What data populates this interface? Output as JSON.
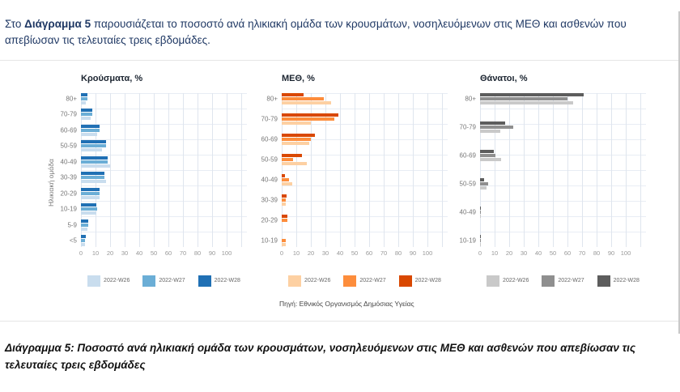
{
  "intro": {
    "prefix": "Στο ",
    "bold_text": "Διάγραμμα 5",
    "rest": " παρουσιάζεται το ποσοστό ανά ηλικιακή ομάδα των κρουσμάτων, νοσηλευόμενων στις ΜΕΘ και ασθενών που απεβίωσαν τις τελευταίες τρεις εβδομάδες."
  },
  "ylabel": "Ηλικιακή ομάδα",
  "source": "Πηγή: Εθνικός Οργανισμός Δημόσιας Υγείας",
  "caption": "Διάγραμμα 5: Ποσοστό ανά ηλικιακή ομάδα των κρουσμάτων, νοσηλευόμενων στις ΜΕΘ και ασθενών που απεβίωσαν τις τελευταίες τρεις εβδομάδες",
  "chart_data": [
    {
      "type": "bar",
      "orientation": "horizontal",
      "title": "Κρούσματα, %",
      "xlim": [
        0,
        100
      ],
      "xticks": [
        0,
        10,
        20,
        30,
        40,
        50,
        60,
        70,
        80,
        90,
        100
      ],
      "grid": true,
      "legend_position": "bottom",
      "categories": [
        "80+",
        "70-79",
        "60-69",
        "50-59",
        "40-49",
        "30-39",
        "20-29",
        "10-19",
        "5-9",
        "<5"
      ],
      "series": [
        {
          "name": "2022-W26",
          "color": "#c9ddee",
          "values": [
            3.5,
            6.5,
            11,
            14.5,
            20,
            17,
            13,
            10.5,
            4.5,
            2.5
          ]
        },
        {
          "name": "2022-W27",
          "color": "#6baed6",
          "values": [
            4.5,
            8,
            13,
            17,
            18.5,
            16,
            13,
            11,
            5,
            3
          ]
        },
        {
          "name": "2022-W28",
          "color": "#2070b4",
          "values": [
            4.5,
            7.5,
            13,
            17,
            18.5,
            16,
            13,
            10.5,
            5,
            3.5
          ]
        }
      ]
    },
    {
      "type": "bar",
      "orientation": "horizontal",
      "title": "ΜΕΘ, %",
      "xlim": [
        0,
        100
      ],
      "xticks": [
        0,
        10,
        20,
        30,
        40,
        50,
        60,
        70,
        80,
        90,
        100
      ],
      "grid": true,
      "legend_position": "bottom",
      "categories": [
        "80+",
        "70-79",
        "60-69",
        "50-59",
        "40-49",
        "30-39",
        "20-29",
        "10-19"
      ],
      "series": [
        {
          "name": "2022-W26",
          "color": "#fdd0a2",
          "values": [
            34,
            20,
            19,
            17,
            7,
            3,
            0,
            3
          ]
        },
        {
          "name": "2022-W27",
          "color": "#fd8d3c",
          "values": [
            29,
            36,
            20,
            8,
            5,
            3,
            4,
            3
          ]
        },
        {
          "name": "2022-W28",
          "color": "#d94801",
          "values": [
            15,
            39,
            23,
            14,
            2,
            3.5,
            4,
            0
          ]
        }
      ]
    },
    {
      "type": "bar",
      "orientation": "horizontal",
      "title": "Θάνατοι, %",
      "xlim": [
        0,
        100
      ],
      "xticks": [
        0,
        10,
        20,
        30,
        40,
        50,
        60,
        70,
        80,
        90,
        100
      ],
      "grid": true,
      "legend_position": "bottom",
      "categories": [
        "80+",
        "70-79",
        "60-69",
        "50-59",
        "40-49",
        "10-19"
      ],
      "series": [
        {
          "name": "2022-W26",
          "color": "#c9c9c9",
          "values": [
            64,
            14,
            14.5,
            4.5,
            0.5,
            0.5
          ]
        },
        {
          "name": "2022-W27",
          "color": "#8f8f8f",
          "values": [
            60,
            23,
            10.5,
            5.5,
            0.5,
            0.5
          ]
        },
        {
          "name": "2022-W28",
          "color": "#5d5d5d",
          "values": [
            71,
            17,
            9.5,
            2.5,
            0.5,
            0.5
          ]
        }
      ]
    }
  ]
}
